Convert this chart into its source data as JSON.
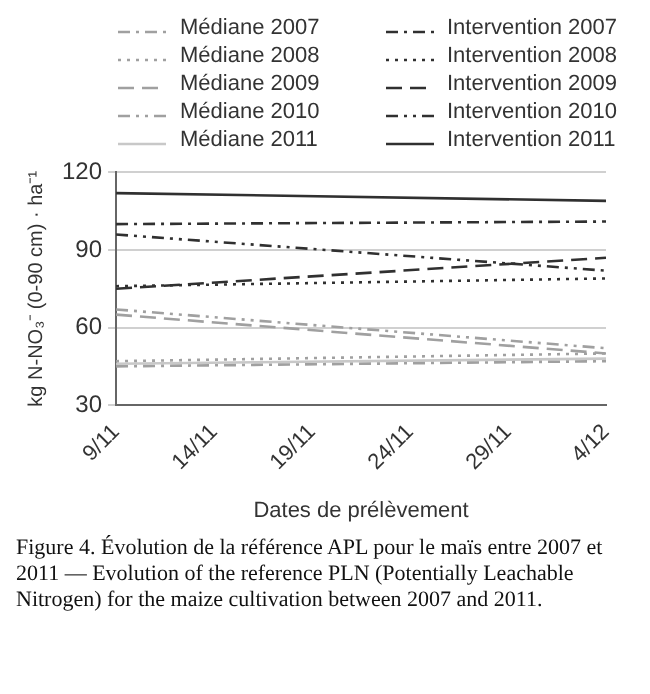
{
  "chart_data": {
    "type": "line",
    "ylabel": "kg N-NO₃⁻ (0-90 cm) · ha⁻¹",
    "xlabel": "Dates de prélèvement",
    "annotations": [
      "Figure 4. Évolution de la référence APL pour le maïs entre 2007 et 2011 — Evolution of the reference PLN (Potentially Leachable Nitrogen) for the maize cultivation between 2007 and 2011."
    ],
    "x": [
      "--11-09",
      "--12-04"
    ],
    "xlim": [
      "--11-09",
      "--12-04"
    ],
    "xticks": [
      {
        "value": "--11-09",
        "label": "9/11"
      },
      {
        "value": "--11-14",
        "label": "14/11"
      },
      {
        "value": "--11-19",
        "label": "19/11"
      },
      {
        "value": "--11-24",
        "label": "24/11"
      },
      {
        "value": "--11-29",
        "label": "29/11"
      },
      {
        "value": "--12-04",
        "label": "4/12"
      }
    ],
    "ylim": [
      30,
      120
    ],
    "yticks": [
      30,
      60,
      90,
      120
    ],
    "grid": "y",
    "legend": "top",
    "marker": "none",
    "series": [
      {
        "name": "Médiane 2007",
        "color": "#a0a0a0",
        "line_style": "dashed",
        "values": [
          45,
          47
        ]
      },
      {
        "name": "Intervention 2007",
        "color": "#303030",
        "line_style": "dashed",
        "values": [
          100,
          101
        ]
      },
      {
        "name": "Médiane 2008",
        "color": "#a0a0a0",
        "line_style": "dotted",
        "values": [
          47,
          50
        ]
      },
      {
        "name": "Intervention 2008",
        "color": "#303030",
        "line_style": "dotted",
        "values": [
          76,
          79
        ]
      },
      {
        "name": "Médiane 2009",
        "color": "#a0a0a0",
        "line_style": "dashed",
        "values": [
          65,
          50
        ]
      },
      {
        "name": "Intervention 2009",
        "color": "#303030",
        "line_style": "dashed",
        "values": [
          75,
          87
        ]
      },
      {
        "name": "Médiane 2010",
        "color": "#a0a0a0",
        "line_style": "dashed",
        "values": [
          67,
          52
        ]
      },
      {
        "name": "Intervention 2010",
        "color": "#303030",
        "line_style": "dashed",
        "values": [
          96,
          82
        ]
      },
      {
        "name": "Médiane 2011",
        "color": "#c8c8c8",
        "line_style": "solid",
        "values": [
          46,
          48
        ]
      },
      {
        "name": "Intervention 2011",
        "color": "#303030",
        "line_style": "solid",
        "values": [
          112,
          109
        ]
      }
    ]
  }
}
